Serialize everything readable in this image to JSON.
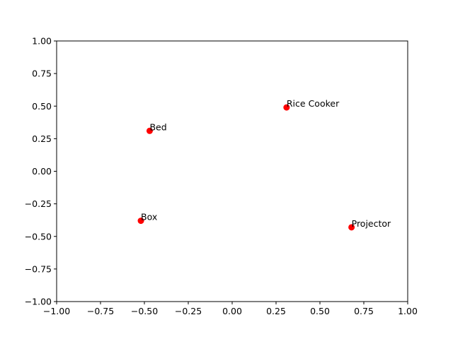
{
  "chart_data": {
    "type": "scatter",
    "title": "",
    "xlabel": "",
    "ylabel": "",
    "xlim": [
      -1.0,
      1.0
    ],
    "ylim": [
      -1.0,
      1.0
    ],
    "xticks": [
      "−1.00",
      "−0.75",
      "−0.50",
      "−0.25",
      "0.00",
      "0.25",
      "0.50",
      "0.75",
      "1.00"
    ],
    "yticks": [
      "−1.00",
      "−0.75",
      "−0.50",
      "−0.25",
      "0.00",
      "0.25",
      "0.50",
      "0.75",
      "1.00"
    ],
    "grid": false,
    "marker_color": "#ff0000",
    "points": [
      {
        "label": "Rice Cooker",
        "x": 0.31,
        "y": 0.49
      },
      {
        "label": "Bed",
        "x": -0.47,
        "y": 0.31
      },
      {
        "label": "Box",
        "x": -0.52,
        "y": -0.38
      },
      {
        "label": "Projector",
        "x": 0.68,
        "y": -0.43
      }
    ]
  }
}
